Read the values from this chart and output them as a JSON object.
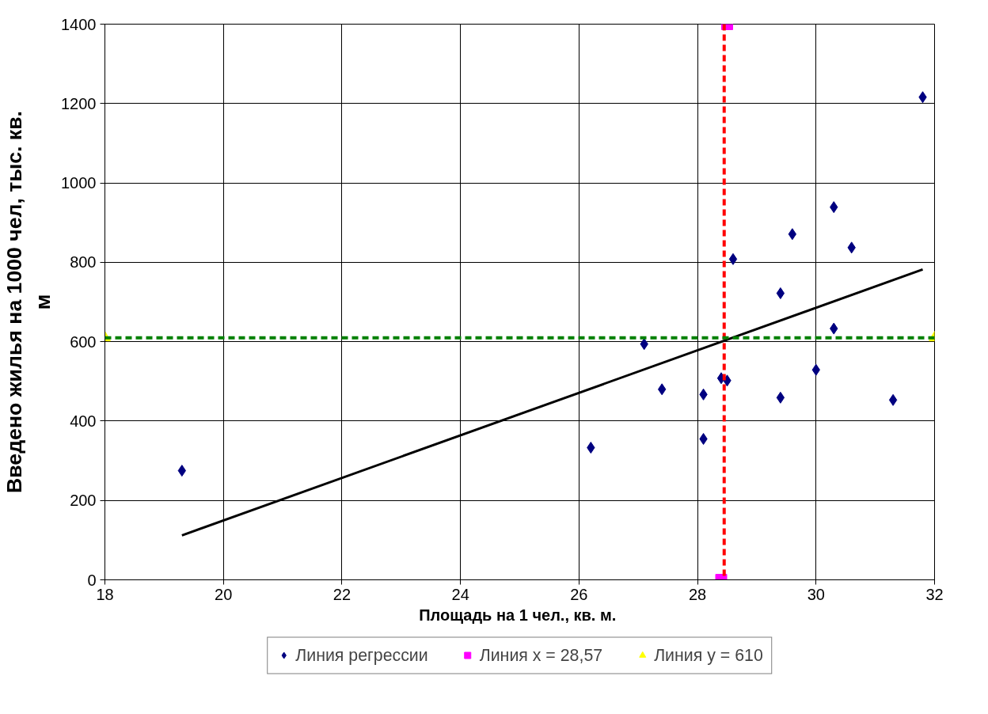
{
  "chart_data": {
    "type": "scatter",
    "xlabel": "Площадь на 1 чел.,  кв. м.",
    "ylabel": "Введено жилья на 1000 чел, тыс. кв. м",
    "xlim": [
      18,
      32
    ],
    "ylim": [
      0,
      1400
    ],
    "xticks": [
      18,
      20,
      22,
      24,
      26,
      28,
      30,
      32
    ],
    "yticks": [
      0,
      200,
      400,
      600,
      800,
      1000,
      1200,
      1400
    ],
    "grid": true,
    "legend": "bottom",
    "series": [
      {
        "name": "Линия регрессии",
        "marker": "diamond",
        "color": "#000080",
        "x": [
          19.3,
          26.2,
          27.1,
          27.4,
          28.1,
          28.1,
          28.4,
          28.5,
          28.6,
          29.4,
          29.4,
          29.6,
          30.0,
          30.3,
          30.3,
          30.6,
          31.3,
          31.8
        ],
        "values": [
          275,
          333,
          594,
          480,
          467,
          355,
          508,
          502,
          808,
          722,
          459,
          871,
          529,
          939,
          633,
          837,
          453,
          1216
        ]
      },
      {
        "type": "line",
        "marker": "none",
        "line_style": "solid",
        "color": "#000000",
        "x": [
          19.3,
          31.8
        ],
        "values": [
          112,
          782
        ]
      },
      {
        "name": "Линия x = 28,57",
        "marker": "square",
        "color": "#ff00ff",
        "x": [
          28.4,
          28.5
        ],
        "values": [
          0,
          1400
        ]
      },
      {
        "name": "Линия y = 610",
        "marker": "triangle",
        "color": "#ffff00",
        "x": [
          18,
          32
        ],
        "values": [
          610,
          610
        ]
      }
    ],
    "ref_lines": [
      {
        "axis": "x",
        "value": 28.45,
        "color": "#ff0000",
        "line_style": "dashed"
      },
      {
        "axis": "y",
        "value": 610,
        "color": "#008000",
        "line_style": "dashed"
      }
    ]
  }
}
